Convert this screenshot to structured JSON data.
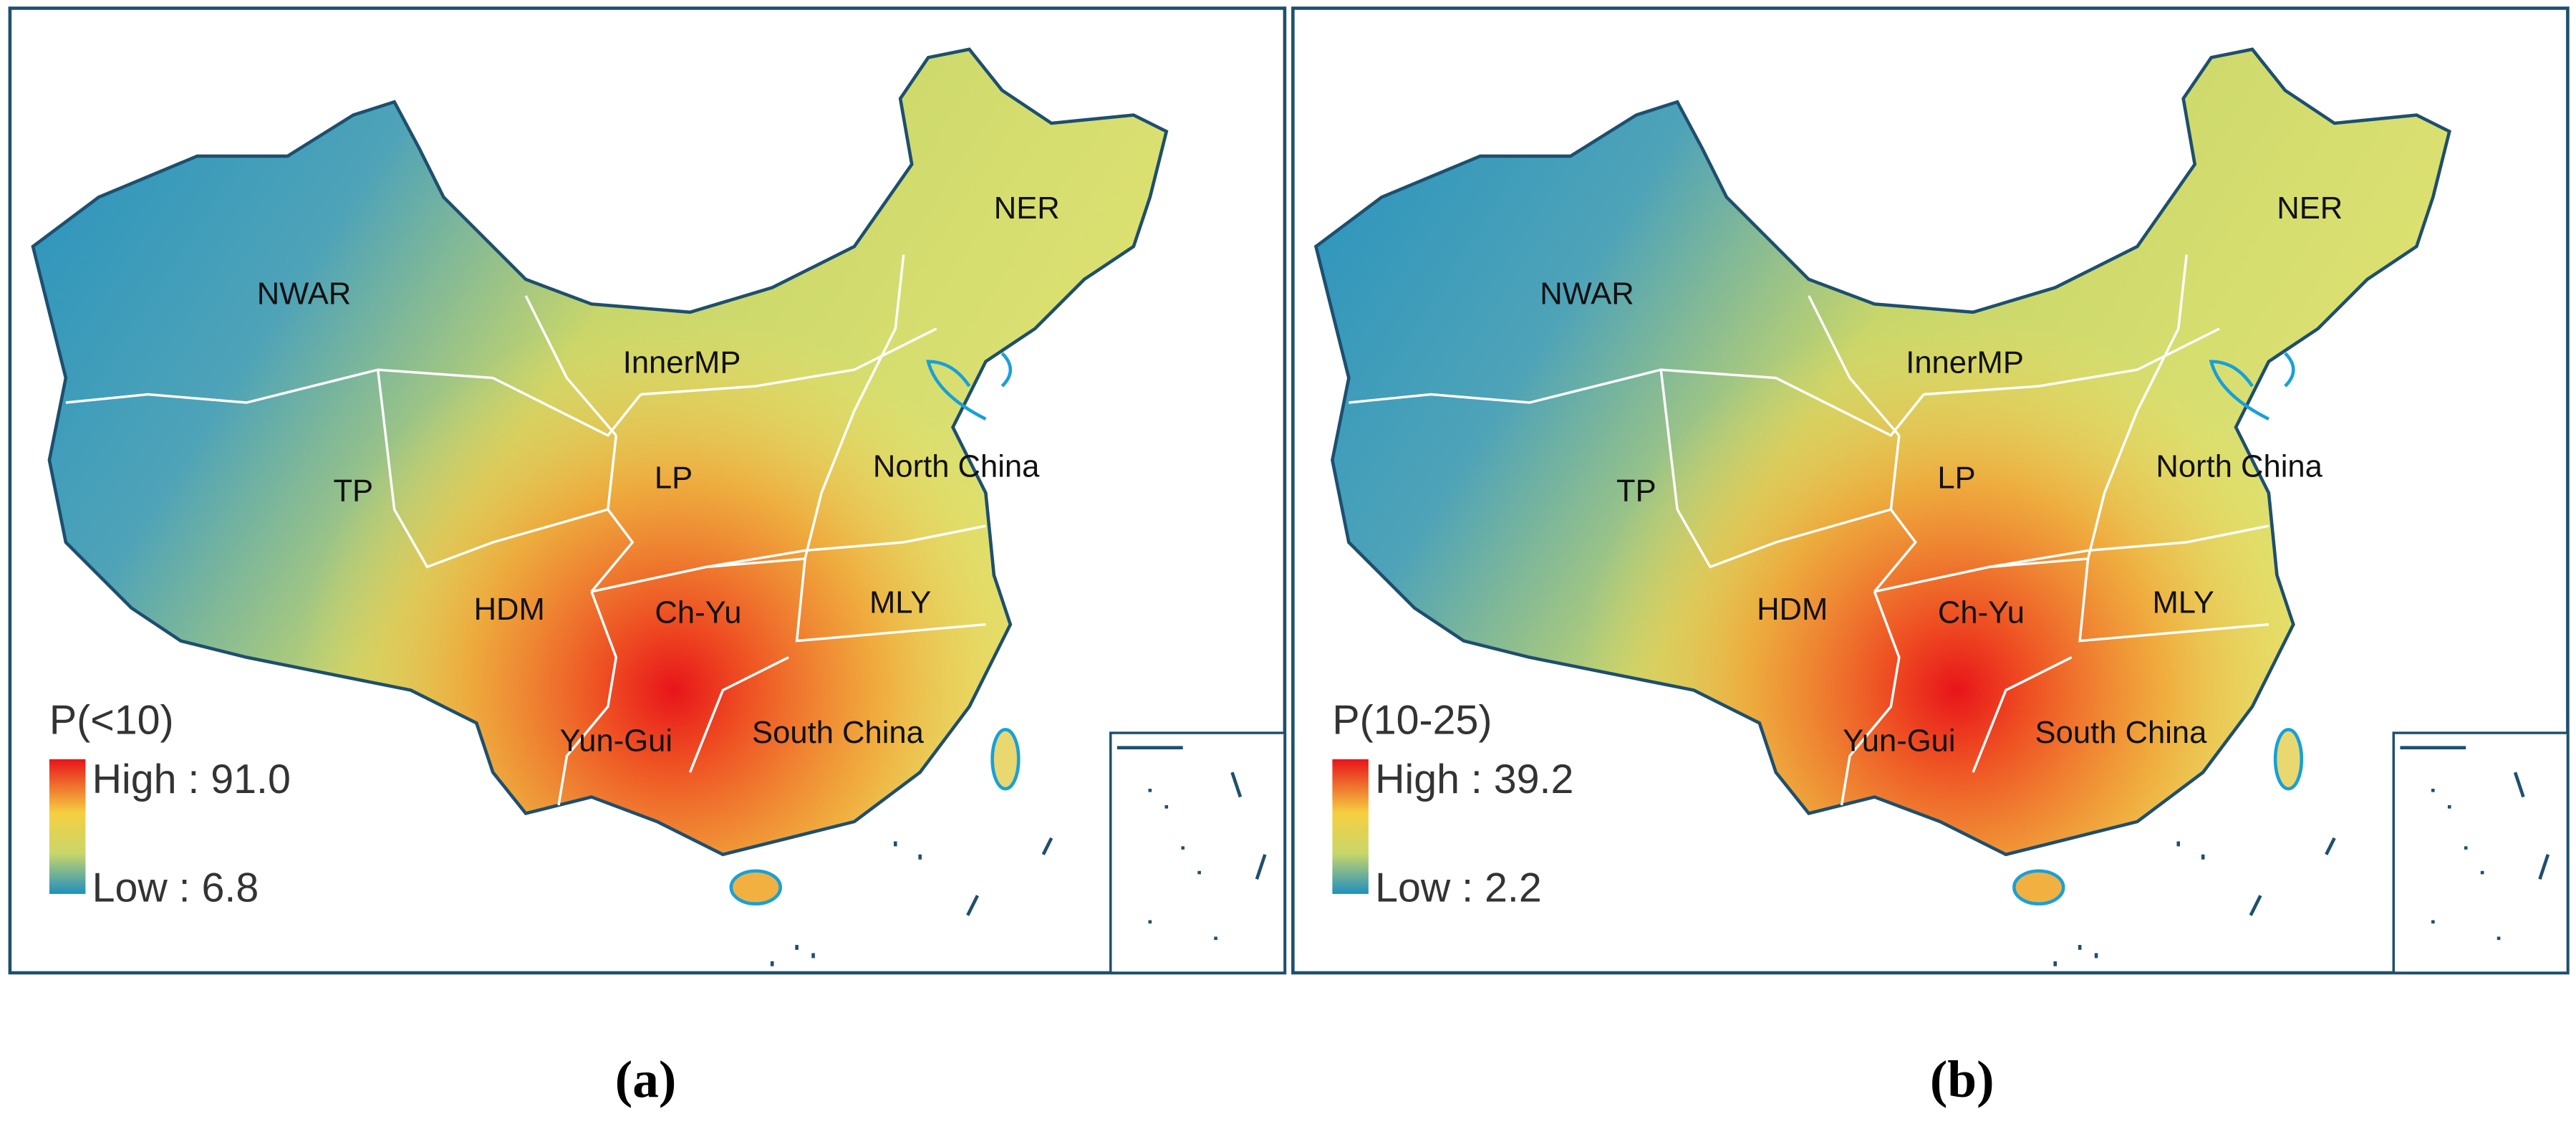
{
  "panels": [
    {
      "legend": {
        "title": "P(<10)",
        "high": "High : 91.0",
        "low": "Low : 6.8"
      },
      "regions": [
        "NWAR",
        "InnerMP",
        "NER",
        "TP",
        "LP",
        "North China",
        "HDM",
        "Ch-Yu",
        "MLY",
        "Yun-Gui",
        "South China"
      ],
      "caption": "(a)"
    },
    {
      "legend": {
        "title": "P(10-25)",
        "high": "High : 39.2",
        "low": "Low : 2.2"
      },
      "regions": [
        "NWAR",
        "InnerMP",
        "NER",
        "TP",
        "LP",
        "North China",
        "HDM",
        "Ch-Yu",
        "MLY",
        "Yun-Gui",
        "South China"
      ],
      "caption": "(b)"
    }
  ]
}
